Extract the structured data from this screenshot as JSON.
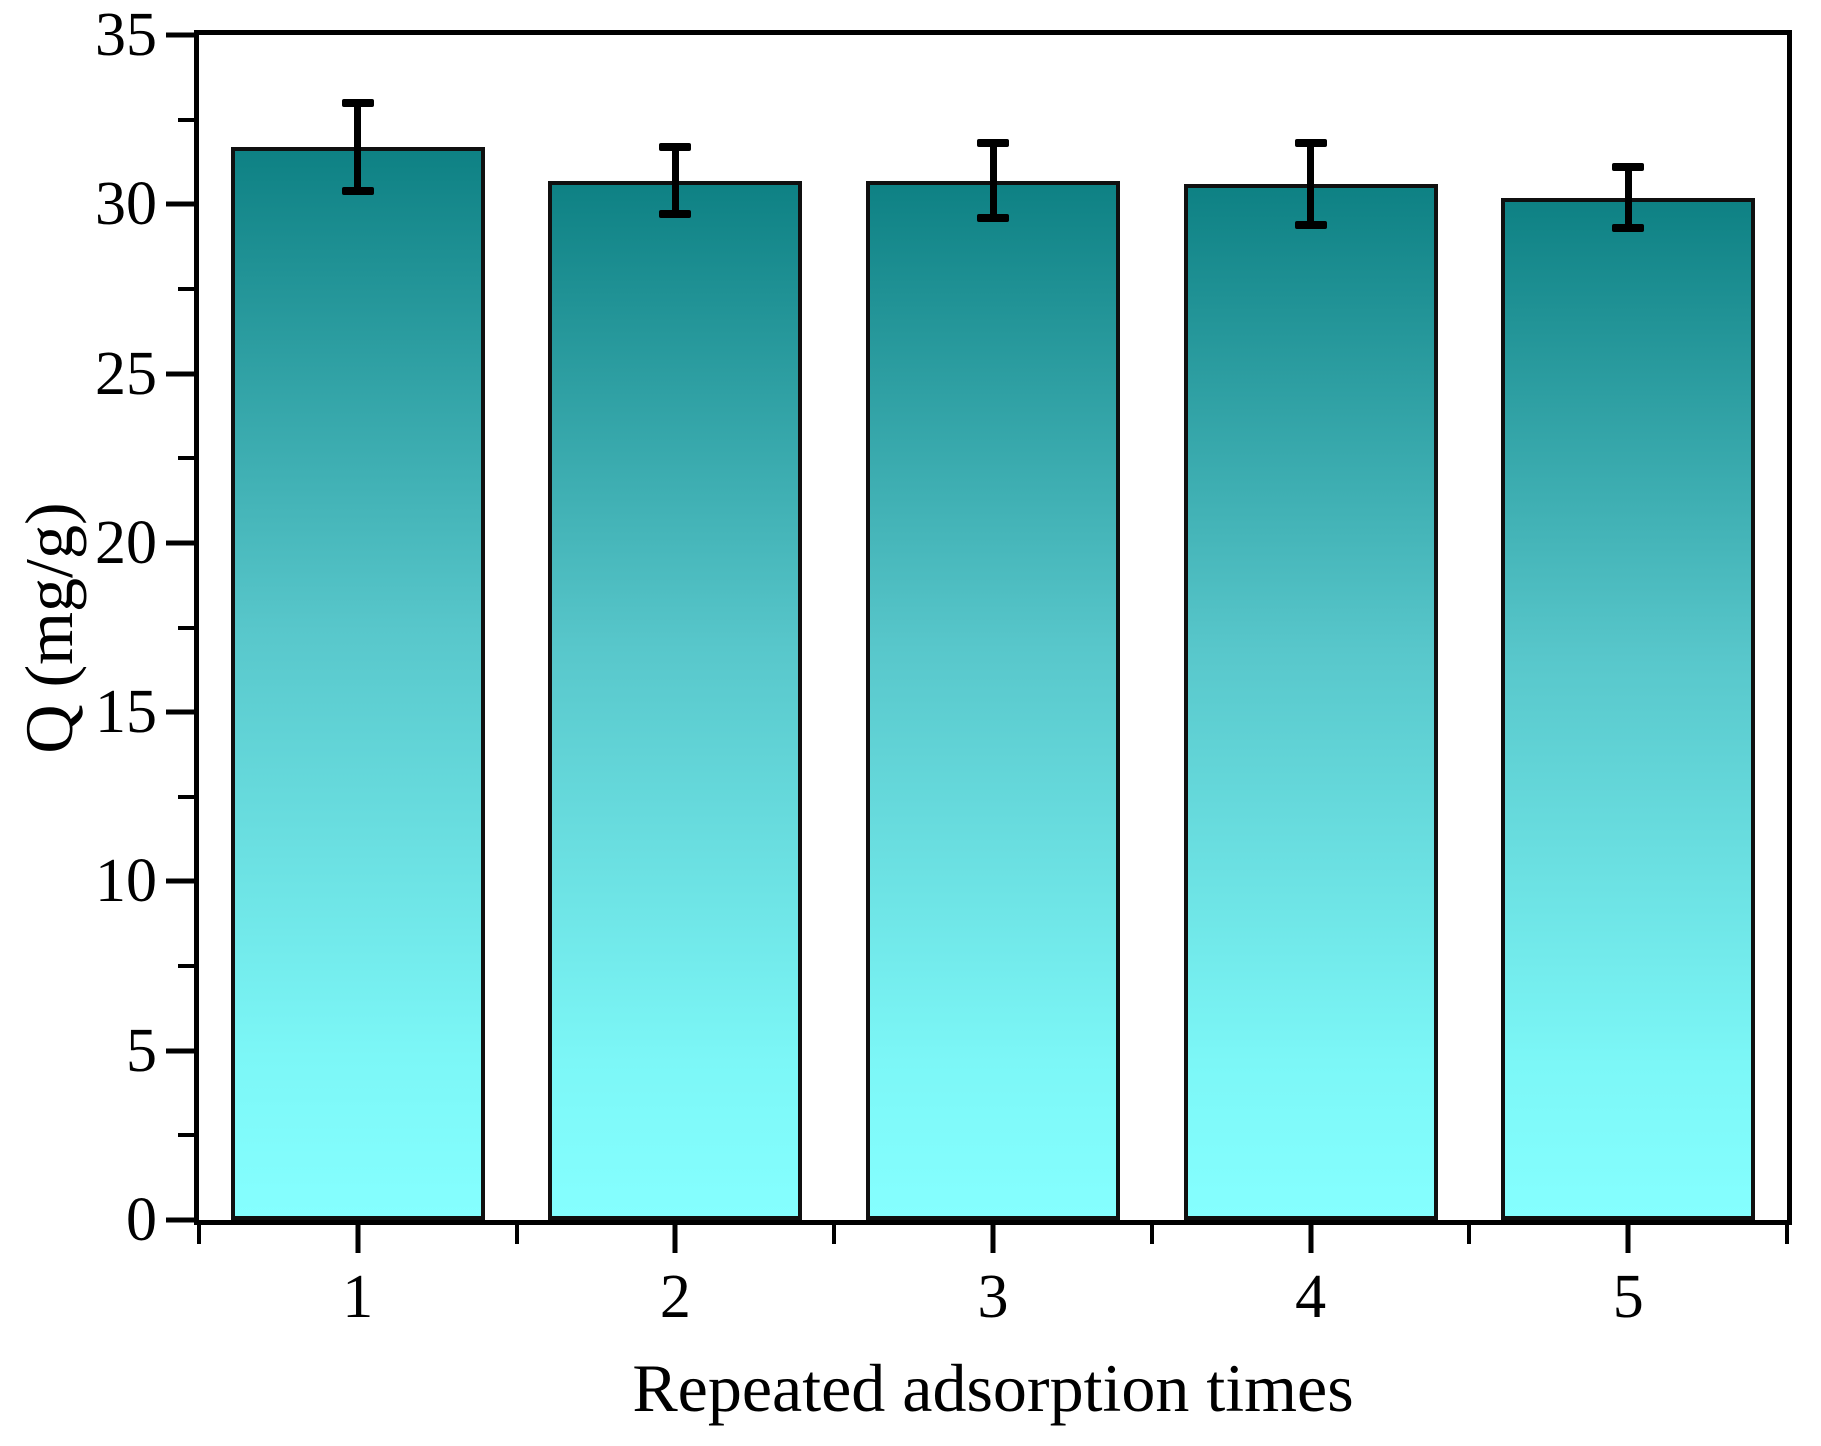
{
  "figure": {
    "background": "#ffffff",
    "frame_color": "#000000",
    "text_color": "#000000"
  },
  "chart_data": {
    "type": "bar",
    "title": "",
    "categories": [
      "1",
      "2",
      "3",
      "4",
      "5"
    ],
    "values": [
      31.7,
      30.7,
      30.7,
      30.6,
      30.2
    ],
    "errors": [
      1.3,
      1.0,
      1.1,
      1.2,
      0.9
    ],
    "xlabel": "Repeated adsorption times",
    "ylabel": "Q (mg/g)",
    "ylim": [
      0,
      35
    ],
    "y_major_ticks": [
      0,
      5,
      10,
      15,
      20,
      25,
      30,
      35
    ],
    "y_minor_step": 2.5,
    "grid": false,
    "legend": false,
    "bar_width_fraction": 0.8,
    "bar_gradient_top": "#0E8184",
    "bar_gradient_mid": "#58C7CB",
    "bar_gradient_low": "#7CF7F7",
    "bar_gradient_bottom": "#85FFFF",
    "bar_border_color": "#101010",
    "error_bar_color": "#000000"
  }
}
